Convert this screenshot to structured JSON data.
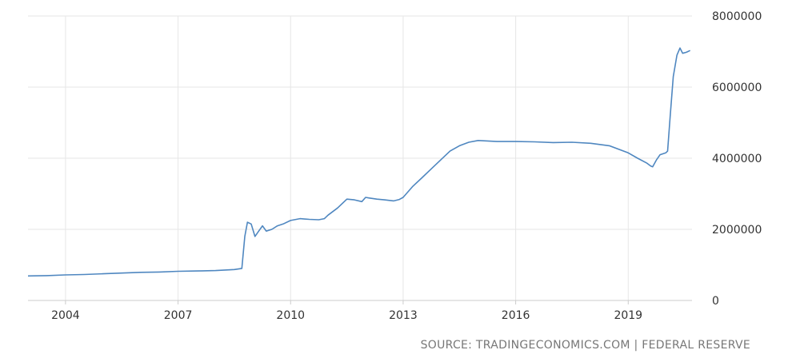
{
  "source_text": "SOURCE: TRADINGECONOMICS.COM | FEDERAL RESERVE",
  "colors": {
    "line": "#4f87c0",
    "grid": "#e6e6e6",
    "axis": "#cccccc"
  },
  "chart_data": {
    "type": "line",
    "title": "",
    "xlabel": "",
    "ylabel": "",
    "xlim": [
      2003.0,
      2020.7
    ],
    "ylim": [
      0,
      8000000
    ],
    "x_ticks": [
      2004,
      2007,
      2010,
      2013,
      2016,
      2019
    ],
    "x_tick_labels": [
      "2004",
      "2007",
      "2010",
      "2013",
      "2016",
      "2019"
    ],
    "y_ticks": [
      0,
      2000000,
      4000000,
      6000000,
      8000000
    ],
    "y_tick_labels": [
      "0",
      "2000000",
      "4000000",
      "6000000",
      "8000000"
    ],
    "grid": true,
    "legend": "none",
    "series": [
      {
        "x": [
          2003.0,
          2003.5,
          2004.0,
          2004.5,
          2005.0,
          2005.5,
          2006.0,
          2006.5,
          2007.0,
          2007.5,
          2008.0,
          2008.5,
          2008.7,
          2008.78,
          2008.85,
          2008.95,
          2009.05,
          2009.15,
          2009.25,
          2009.35,
          2009.5,
          2009.65,
          2009.8,
          2010.0,
          2010.25,
          2010.5,
          2010.75,
          2010.9,
          2011.0,
          2011.25,
          2011.5,
          2011.7,
          2011.9,
          2012.0,
          2012.1,
          2012.3,
          2012.5,
          2012.75,
          2012.9,
          2013.0,
          2013.25,
          2013.5,
          2013.75,
          2014.0,
          2014.25,
          2014.5,
          2014.75,
          2015.0,
          2015.5,
          2016.0,
          2016.5,
          2017.0,
          2017.5,
          2018.0,
          2018.5,
          2019.0,
          2019.25,
          2019.5,
          2019.6,
          2019.65,
          2019.75,
          2019.85,
          2020.0,
          2020.05,
          2020.12,
          2020.2,
          2020.3,
          2020.38,
          2020.45,
          2020.55,
          2020.65
        ],
        "y": [
          690000,
          700000,
          720000,
          730000,
          750000,
          770000,
          790000,
          800000,
          820000,
          830000,
          840000,
          870000,
          900000,
          1800000,
          2200000,
          2150000,
          1800000,
          1950000,
          2100000,
          1950000,
          2000000,
          2100000,
          2150000,
          2250000,
          2300000,
          2280000,
          2270000,
          2300000,
          2400000,
          2600000,
          2850000,
          2830000,
          2780000,
          2900000,
          2880000,
          2850000,
          2830000,
          2800000,
          2840000,
          2900000,
          3200000,
          3450000,
          3700000,
          3950000,
          4200000,
          4350000,
          4450000,
          4500000,
          4470000,
          4470000,
          4460000,
          4440000,
          4450000,
          4420000,
          4350000,
          4150000,
          4000000,
          3860000,
          3780000,
          3760000,
          3950000,
          4100000,
          4150000,
          4200000,
          5200000,
          6300000,
          6900000,
          7100000,
          6950000,
          6980000,
          7030000
        ]
      }
    ]
  }
}
